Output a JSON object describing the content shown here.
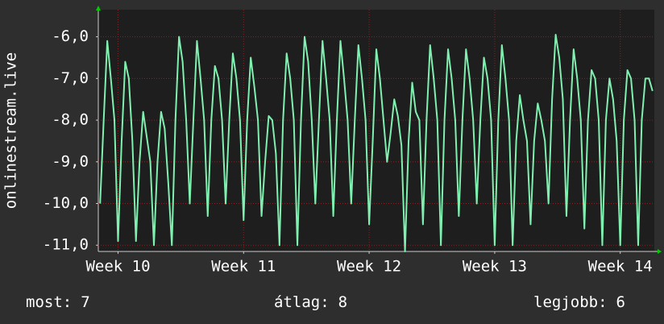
{
  "chart_data": {
    "type": "line",
    "y_label": "onlinestream.live",
    "series": [
      {
        "name": "onlinestream.live",
        "color": "#7ff0b0",
        "values": [
          -10.0,
          -8.0,
          -6.1,
          -7.0,
          -8.0,
          -10.9,
          -8.5,
          -6.6,
          -7.0,
          -8.5,
          -10.9,
          -9.0,
          -7.8,
          -8.4,
          -9.0,
          -11.0,
          -9.0,
          -7.8,
          -8.2,
          -9.5,
          -11.0,
          -8.0,
          -6.0,
          -6.6,
          -8.0,
          -10.0,
          -8.0,
          -6.1,
          -7.0,
          -8.0,
          -10.3,
          -8.0,
          -6.7,
          -7.0,
          -8.0,
          -10.0,
          -8.0,
          -6.4,
          -7.0,
          -8.0,
          -10.4,
          -8.0,
          -6.5,
          -7.2,
          -8.0,
          -10.3,
          -9.0,
          -7.9,
          -8.0,
          -8.8,
          -11.0,
          -8.0,
          -6.4,
          -7.0,
          -8.0,
          -11.0,
          -8.0,
          -6.0,
          -6.6,
          -8.0,
          -10.0,
          -8.0,
          -6.1,
          -7.0,
          -8.0,
          -10.3,
          -8.0,
          -6.1,
          -7.0,
          -8.0,
          -10.0,
          -8.0,
          -6.2,
          -7.0,
          -8.0,
          -10.5,
          -8.5,
          -6.3,
          -7.0,
          -8.0,
          -9.0,
          -8.3,
          -7.5,
          -7.9,
          -8.6,
          -11.15,
          -8.5,
          -7.1,
          -7.8,
          -8.0,
          -10.5,
          -8.0,
          -6.2,
          -7.0,
          -8.0,
          -11.0,
          -8.0,
          -6.3,
          -7.0,
          -8.0,
          -10.3,
          -8.0,
          -6.3,
          -7.0,
          -8.0,
          -10.0,
          -8.0,
          -6.5,
          -7.0,
          -8.0,
          -11.0,
          -8.0,
          -6.2,
          -7.0,
          -8.0,
          -11.0,
          -8.5,
          -7.4,
          -8.0,
          -8.5,
          -10.5,
          -8.5,
          -7.6,
          -8.0,
          -8.5,
          -10.0,
          -7.5,
          -5.95,
          -6.5,
          -7.5,
          -10.3,
          -8.0,
          -6.3,
          -7.0,
          -8.0,
          -10.6,
          -8.0,
          -6.8,
          -7.0,
          -8.0,
          -11.0,
          -8.0,
          -7.0,
          -7.5,
          -8.5,
          -11.0,
          -8.0,
          -6.8,
          -7.0,
          -8.0,
          -11.0,
          -8.0,
          -7.0,
          -7.0,
          -7.3
        ]
      }
    ],
    "ylim": [
      -11.15,
      -5.35
    ],
    "yticks": [
      {
        "value": -6,
        "label": "-6,0"
      },
      {
        "value": -7,
        "label": "-7,0"
      },
      {
        "value": -8,
        "label": "-8,0"
      },
      {
        "value": -9,
        "label": "-9,0"
      },
      {
        "value": -10,
        "label": "-10,0"
      },
      {
        "value": -11,
        "label": "-11,0"
      }
    ],
    "xticks": [
      {
        "value": 5,
        "label": "Week 10"
      },
      {
        "value": 40,
        "label": "Week 11"
      },
      {
        "value": 75,
        "label": "Week 12"
      },
      {
        "value": 110,
        "label": "Week 13"
      },
      {
        "value": 145,
        "label": "Week 14"
      }
    ],
    "grid": true,
    "footer": [
      {
        "label": "most:",
        "value": "7"
      },
      {
        "label": "átlag:",
        "value": "8"
      },
      {
        "label": "legjobb:",
        "value": "6"
      }
    ]
  }
}
